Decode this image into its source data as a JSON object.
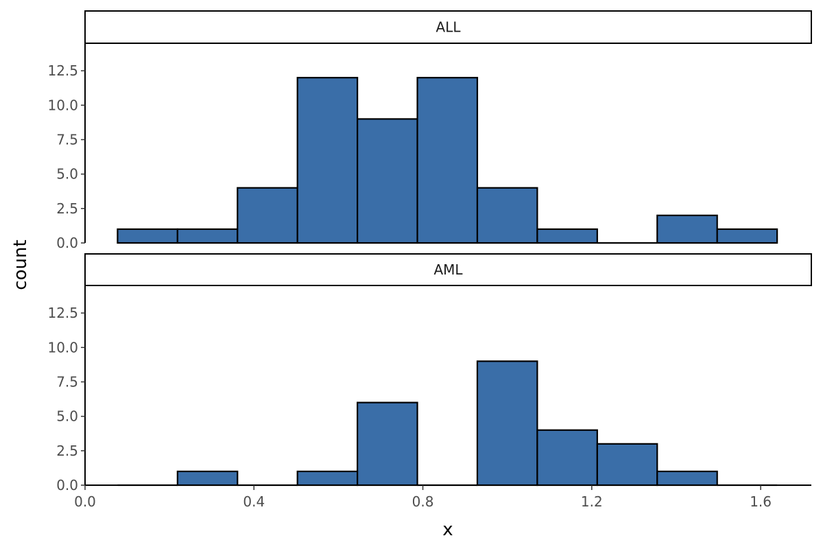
{
  "chart_data": {
    "type": "histogram",
    "xlabel": "x",
    "ylabel": "count",
    "xlim": [
      0.0,
      1.72
    ],
    "ylim": [
      0,
      14.5
    ],
    "x_ticks": [
      0.0,
      0.4,
      0.8,
      1.2,
      1.6
    ],
    "x_tick_labels": [
      "0.0",
      "0.4",
      "0.8",
      "1.2",
      "1.6"
    ],
    "y_ticks": [
      0,
      2.5,
      5,
      7.5,
      10,
      12.5
    ],
    "y_tick_labels": [
      "0.0",
      "2.5",
      "5.0",
      "7.5",
      "10.0",
      "12.5"
    ],
    "fill_color": "#3a6ea8",
    "edge_color": "#000000",
    "grid": false,
    "bin_edges": [
      0.077,
      0.219,
      0.361,
      0.503,
      0.645,
      0.787,
      0.929,
      1.071,
      1.213,
      1.355,
      1.497,
      1.639
    ],
    "panels": [
      {
        "label": "ALL",
        "counts": [
          1,
          1,
          4,
          12,
          9,
          12,
          4,
          1,
          0,
          2,
          1
        ]
      },
      {
        "label": "AML",
        "counts": [
          0,
          1,
          0,
          1,
          6,
          0,
          9,
          4,
          3,
          1,
          0
        ]
      }
    ]
  }
}
